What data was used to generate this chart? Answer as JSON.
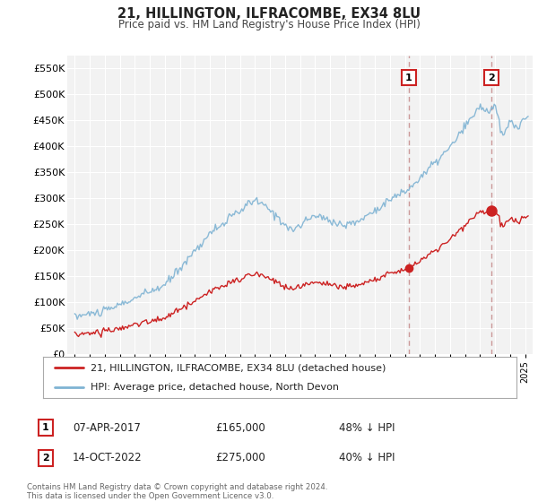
{
  "title": "21, HILLINGTON, ILFRACOMBE, EX34 8LU",
  "subtitle": "Price paid vs. HM Land Registry's House Price Index (HPI)",
  "background_color": "#ffffff",
  "plot_bg_color": "#f2f2f2",
  "grid_color": "#ffffff",
  "hpi_color": "#7fb3d3",
  "price_color": "#cc2222",
  "vline_color": "#cc9999",
  "sale1_t": 2017.25,
  "sale1_price": 165000,
  "sale2_t": 2022.75,
  "sale2_price": 275000,
  "legend_line1": "21, HILLINGTON, ILFRACOMBE, EX34 8LU (detached house)",
  "legend_line2": "HPI: Average price, detached house, North Devon",
  "note1_label": "1",
  "note1_date": "07-APR-2017",
  "note1_price": "£165,000",
  "note1_hpi": "48% ↓ HPI",
  "note2_label": "2",
  "note2_date": "14-OCT-2022",
  "note2_price": "£275,000",
  "note2_hpi": "40% ↓ HPI",
  "footer": "Contains HM Land Registry data © Crown copyright and database right 2024.\nThis data is licensed under the Open Government Licence v3.0.",
  "ylim": [
    0,
    575000
  ],
  "yticks": [
    0,
    50000,
    100000,
    150000,
    200000,
    250000,
    300000,
    350000,
    400000,
    450000,
    500000,
    550000
  ],
  "ytick_labels": [
    "£0",
    "£50K",
    "£100K",
    "£150K",
    "£200K",
    "£250K",
    "£300K",
    "£350K",
    "£400K",
    "£450K",
    "£500K",
    "£550K"
  ],
  "xmin": 1994.5,
  "xmax": 2025.5
}
